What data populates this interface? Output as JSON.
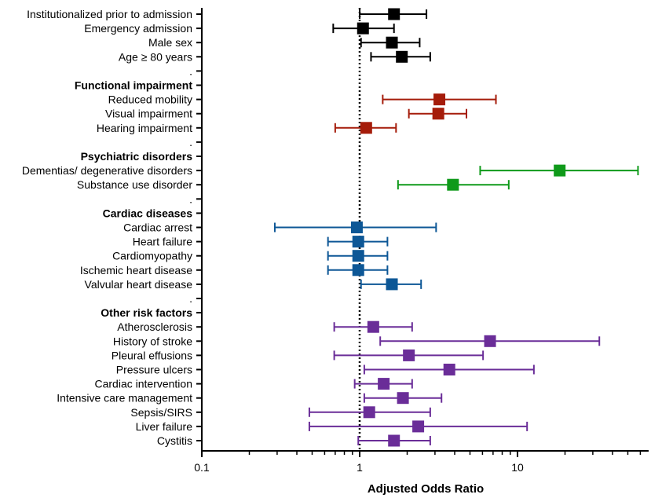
{
  "chart_data": {
    "type": "forest",
    "title": "",
    "xlabel": "Adjusted Odds Ratio",
    "ylabel": "",
    "xscale": "log",
    "xlim": [
      0.1,
      60
    ],
    "xticks": [
      0.1,
      1,
      10
    ],
    "xtick_labels": [
      "0.1",
      "1",
      "10"
    ],
    "reference_line": 1,
    "colors": {
      "black": "#000000",
      "red": "#a51c0a",
      "green": "#0f9a1a",
      "blue": "#0d5796",
      "purple": "#6a2d98"
    },
    "rows": [
      {
        "label": "Institutionalized prior to admission",
        "or": 1.65,
        "lo": 1.0,
        "hi": 2.65,
        "color": "black"
      },
      {
        "label": "Emergency admission",
        "or": 1.05,
        "lo": 0.68,
        "hi": 1.65,
        "color": "black"
      },
      {
        "label": "Male sex",
        "or": 1.6,
        "lo": 1.02,
        "hi": 2.4,
        "color": "black"
      },
      {
        "label": "Age ≥ 80 years",
        "or": 1.85,
        "lo": 1.18,
        "hi": 2.8,
        "color": "black"
      },
      {
        "label": ".",
        "spacer": true
      },
      {
        "label": "Functional impairment",
        "header": true
      },
      {
        "label": "Reduced mobility",
        "or": 3.2,
        "lo": 1.4,
        "hi": 7.3,
        "color": "red"
      },
      {
        "label": "Visual impairment",
        "or": 3.15,
        "lo": 2.05,
        "hi": 4.75,
        "color": "red"
      },
      {
        "label": "Hearing impairment",
        "or": 1.1,
        "lo": 0.7,
        "hi": 1.7,
        "color": "red"
      },
      {
        "label": ".",
        "spacer": true
      },
      {
        "label": "Psychiatric disorders",
        "header": true
      },
      {
        "label": "Dementias/ degenerative disorders",
        "or": 18.5,
        "lo": 5.8,
        "hi": 58,
        "color": "green"
      },
      {
        "label": "Substance use disorder",
        "or": 3.9,
        "lo": 1.75,
        "hi": 8.8,
        "color": "green"
      },
      {
        "label": ".",
        "spacer": true
      },
      {
        "label": "Cardiac diseases",
        "header": true
      },
      {
        "label": "Cardiac arrest",
        "or": 0.96,
        "lo": 0.29,
        "hi": 3.05,
        "color": "blue"
      },
      {
        "label": "Heart failure",
        "or": 0.98,
        "lo": 0.63,
        "hi": 1.5,
        "color": "blue"
      },
      {
        "label": "Cardiomyopathy",
        "or": 0.98,
        "lo": 0.63,
        "hi": 1.5,
        "color": "blue"
      },
      {
        "label": "Ischemic heart disease",
        "or": 0.98,
        "lo": 0.63,
        "hi": 1.5,
        "color": "blue"
      },
      {
        "label": "Valvular heart disease",
        "or": 1.6,
        "lo": 1.02,
        "hi": 2.45,
        "color": "blue"
      },
      {
        "label": ".",
        "spacer": true
      },
      {
        "label": "Other risk factors",
        "header": true
      },
      {
        "label": "Atherosclerosis",
        "or": 1.22,
        "lo": 0.69,
        "hi": 2.15,
        "color": "purple"
      },
      {
        "label": "History of stroke",
        "or": 6.7,
        "lo": 1.35,
        "hi": 33,
        "color": "purple"
      },
      {
        "label": "Pleural effusions",
        "or": 2.05,
        "lo": 0.69,
        "hi": 6.05,
        "color": "purple"
      },
      {
        "label": "Pressure ulcers",
        "or": 3.7,
        "lo": 1.07,
        "hi": 12.7,
        "color": "purple"
      },
      {
        "label": "Cardiac intervention",
        "or": 1.42,
        "lo": 0.93,
        "hi": 2.15,
        "color": "purple"
      },
      {
        "label": "Intensive care management",
        "or": 1.88,
        "lo": 1.07,
        "hi": 3.3,
        "color": "purple"
      },
      {
        "label": "Sepsis/SIRS",
        "or": 1.15,
        "lo": 0.48,
        "hi": 2.8,
        "color": "purple"
      },
      {
        "label": "Liver failure",
        "or": 2.35,
        "lo": 0.48,
        "hi": 11.5,
        "color": "purple"
      },
      {
        "label": "Cystitis",
        "or": 1.65,
        "lo": 0.98,
        "hi": 2.8,
        "color": "purple"
      }
    ]
  }
}
